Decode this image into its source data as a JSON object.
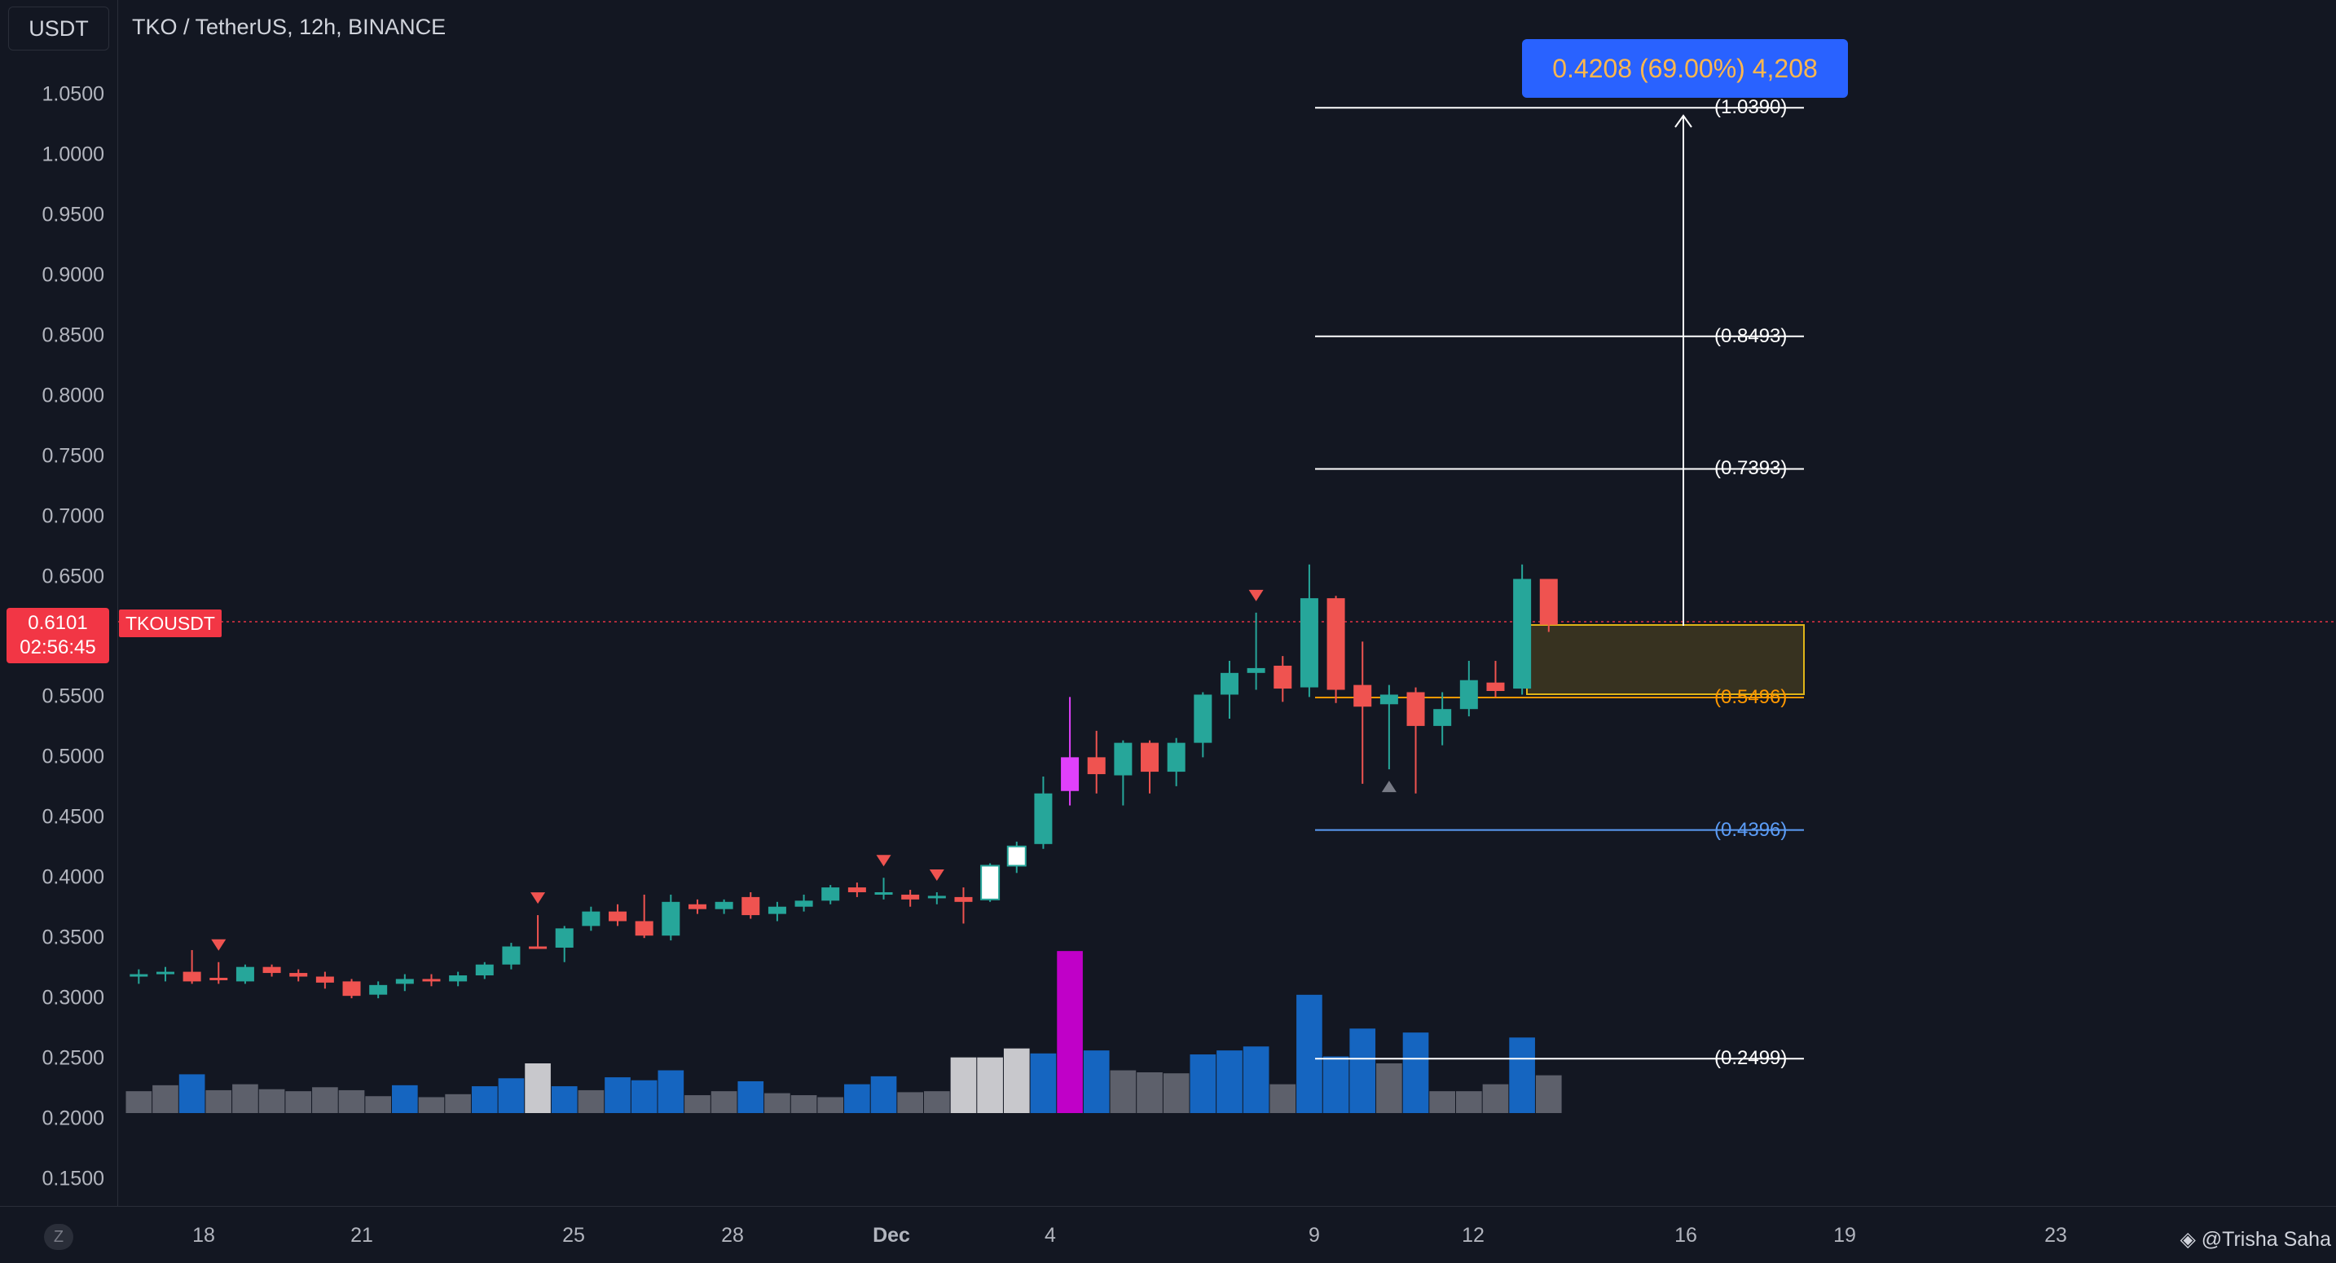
{
  "header": {
    "currency": "USDT",
    "title": "TKO / TetherUS, 12h, BINANCE"
  },
  "price_axis": {
    "labels": [
      "1.0500",
      "1.0000",
      "0.9500",
      "0.9000",
      "0.8500",
      "0.8000",
      "0.7500",
      "0.7000",
      "0.6500",
      "0.5500",
      "0.5000",
      "0.4500",
      "0.4000",
      "0.3500",
      "0.3000",
      "0.2500",
      "0.2000",
      "0.1500"
    ]
  },
  "current_price": {
    "value": "0.6101",
    "countdown": "02:56:45",
    "symbol": "TKOUSDT"
  },
  "date_axis": {
    "labels": [
      {
        "text": "18",
        "bold": false
      },
      {
        "text": "21",
        "bold": false
      },
      {
        "text": "25",
        "bold": false
      },
      {
        "text": "28",
        "bold": false
      },
      {
        "text": "Dec",
        "bold": true
      },
      {
        "text": "4",
        "bold": false
      },
      {
        "text": "9",
        "bold": false
      },
      {
        "text": "12",
        "bold": false
      },
      {
        "text": "16",
        "bold": false
      },
      {
        "text": "19",
        "bold": false
      },
      {
        "text": "23",
        "bold": false
      }
    ]
  },
  "measure": {
    "label": "0.4208 (69.00%) 4,208"
  },
  "fib_levels": [
    {
      "label": "(1.0390)",
      "price": 1.039,
      "color": "#ffffff"
    },
    {
      "label": "(0.8493)",
      "price": 0.8493,
      "color": "#ffffff"
    },
    {
      "label": "(0.7393)",
      "price": 0.7393,
      "color": "#ffffff"
    },
    {
      "label": "(0.5496)",
      "price": 0.5496,
      "color": "#ff9800"
    },
    {
      "label": "(0.4396)",
      "price": 0.4396,
      "color": "#5b9cf6"
    },
    {
      "label": "(0.2499)",
      "price": 0.2499,
      "color": "#ffffff"
    }
  ],
  "colors": {
    "up": "#26a69a",
    "down": "#ef5350",
    "highlight": "#e040fb",
    "volume_blue": "#1565c0",
    "volume_grey": "#5d606b",
    "volume_light": "#c8c8cc",
    "volume_magenta": "#c000c8"
  },
  "watermark": "@Trisha Saha",
  "z_button": "Z",
  "chart_data": {
    "type": "candlestick",
    "title": "TKO / TetherUS, 12h, BINANCE",
    "ylim": [
      0.12,
      1.08
    ],
    "candles": [
      {
        "o": 0.318,
        "h": 0.324,
        "l": 0.312,
        "c": 0.32,
        "color": "up"
      },
      {
        "o": 0.32,
        "h": 0.326,
        "l": 0.314,
        "c": 0.322,
        "color": "up"
      },
      {
        "o": 0.322,
        "h": 0.34,
        "l": 0.312,
        "c": 0.314,
        "color": "down"
      },
      {
        "o": 0.316,
        "h": 0.33,
        "l": 0.312,
        "c": 0.317,
        "color": "down"
      },
      {
        "o": 0.314,
        "h": 0.328,
        "l": 0.312,
        "c": 0.326,
        "color": "up"
      },
      {
        "o": 0.326,
        "h": 0.328,
        "l": 0.318,
        "c": 0.321,
        "color": "down"
      },
      {
        "o": 0.321,
        "h": 0.324,
        "l": 0.314,
        "c": 0.318,
        "color": "down"
      },
      {
        "o": 0.318,
        "h": 0.322,
        "l": 0.308,
        "c": 0.313,
        "color": "down"
      },
      {
        "o": 0.314,
        "h": 0.316,
        "l": 0.3,
        "c": 0.302,
        "color": "down"
      },
      {
        "o": 0.303,
        "h": 0.314,
        "l": 0.3,
        "c": 0.311,
        "color": "up"
      },
      {
        "o": 0.312,
        "h": 0.32,
        "l": 0.306,
        "c": 0.316,
        "color": "up"
      },
      {
        "o": 0.316,
        "h": 0.32,
        "l": 0.31,
        "c": 0.314,
        "color": "down"
      },
      {
        "o": 0.314,
        "h": 0.322,
        "l": 0.31,
        "c": 0.319,
        "color": "up"
      },
      {
        "o": 0.319,
        "h": 0.33,
        "l": 0.316,
        "c": 0.328,
        "color": "up"
      },
      {
        "o": 0.328,
        "h": 0.346,
        "l": 0.324,
        "c": 0.343,
        "color": "up"
      },
      {
        "o": 0.343,
        "h": 0.369,
        "l": 0.341,
        "c": 0.342,
        "color": "down"
      },
      {
        "o": 0.342,
        "h": 0.36,
        "l": 0.33,
        "c": 0.358,
        "color": "up"
      },
      {
        "o": 0.36,
        "h": 0.376,
        "l": 0.356,
        "c": 0.372,
        "color": "up"
      },
      {
        "o": 0.372,
        "h": 0.378,
        "l": 0.36,
        "c": 0.364,
        "color": "down"
      },
      {
        "o": 0.364,
        "h": 0.386,
        "l": 0.35,
        "c": 0.352,
        "color": "down"
      },
      {
        "o": 0.352,
        "h": 0.386,
        "l": 0.348,
        "c": 0.38,
        "color": "up"
      },
      {
        "o": 0.378,
        "h": 0.382,
        "l": 0.37,
        "c": 0.374,
        "color": "down"
      },
      {
        "o": 0.374,
        "h": 0.382,
        "l": 0.37,
        "c": 0.38,
        "color": "up"
      },
      {
        "o": 0.384,
        "h": 0.388,
        "l": 0.366,
        "c": 0.369,
        "color": "down"
      },
      {
        "o": 0.37,
        "h": 0.38,
        "l": 0.364,
        "c": 0.376,
        "color": "up"
      },
      {
        "o": 0.376,
        "h": 0.386,
        "l": 0.372,
        "c": 0.381,
        "color": "up"
      },
      {
        "o": 0.381,
        "h": 0.394,
        "l": 0.378,
        "c": 0.392,
        "color": "up"
      },
      {
        "o": 0.392,
        "h": 0.396,
        "l": 0.384,
        "c": 0.388,
        "color": "down"
      },
      {
        "o": 0.388,
        "h": 0.4,
        "l": 0.382,
        "c": 0.386,
        "color": "up"
      },
      {
        "o": 0.386,
        "h": 0.39,
        "l": 0.376,
        "c": 0.382,
        "color": "down"
      },
      {
        "o": 0.384,
        "h": 0.388,
        "l": 0.378,
        "c": 0.385,
        "color": "up"
      },
      {
        "o": 0.384,
        "h": 0.392,
        "l": 0.362,
        "c": 0.38,
        "color": "down"
      },
      {
        "o": 0.382,
        "h": 0.412,
        "l": 0.38,
        "c": 0.41,
        "color": "hollow"
      },
      {
        "o": 0.41,
        "h": 0.43,
        "l": 0.404,
        "c": 0.426,
        "color": "hollow"
      },
      {
        "o": 0.428,
        "h": 0.484,
        "l": 0.424,
        "c": 0.47,
        "color": "up"
      },
      {
        "o": 0.472,
        "h": 0.55,
        "l": 0.46,
        "c": 0.5,
        "color": "highlight"
      },
      {
        "o": 0.5,
        "h": 0.522,
        "l": 0.47,
        "c": 0.486,
        "color": "down"
      },
      {
        "o": 0.485,
        "h": 0.514,
        "l": 0.46,
        "c": 0.512,
        "color": "up"
      },
      {
        "o": 0.512,
        "h": 0.514,
        "l": 0.47,
        "c": 0.488,
        "color": "down"
      },
      {
        "o": 0.488,
        "h": 0.516,
        "l": 0.476,
        "c": 0.512,
        "color": "up"
      },
      {
        "o": 0.512,
        "h": 0.554,
        "l": 0.5,
        "c": 0.552,
        "color": "up"
      },
      {
        "o": 0.552,
        "h": 0.58,
        "l": 0.532,
        "c": 0.57,
        "color": "up"
      },
      {
        "o": 0.57,
        "h": 0.62,
        "l": 0.556,
        "c": 0.574,
        "color": "up"
      },
      {
        "o": 0.576,
        "h": 0.584,
        "l": 0.546,
        "c": 0.557,
        "color": "down"
      },
      {
        "o": 0.558,
        "h": 0.66,
        "l": 0.55,
        "c": 0.632,
        "color": "up"
      },
      {
        "o": 0.632,
        "h": 0.634,
        "l": 0.545,
        "c": 0.556,
        "color": "down"
      },
      {
        "o": 0.56,
        "h": 0.596,
        "l": 0.478,
        "c": 0.542,
        "color": "down"
      },
      {
        "o": 0.544,
        "h": 0.56,
        "l": 0.49,
        "c": 0.552,
        "color": "up"
      },
      {
        "o": 0.554,
        "h": 0.558,
        "l": 0.47,
        "c": 0.526,
        "color": "down"
      },
      {
        "o": 0.526,
        "h": 0.554,
        "l": 0.51,
        "c": 0.54,
        "color": "up"
      },
      {
        "o": 0.54,
        "h": 0.58,
        "l": 0.534,
        "c": 0.564,
        "color": "up"
      },
      {
        "o": 0.562,
        "h": 0.58,
        "l": 0.55,
        "c": 0.555,
        "color": "down"
      },
      {
        "o": 0.557,
        "h": 0.66,
        "l": 0.552,
        "c": 0.648,
        "color": "up"
      },
      {
        "o": 0.648,
        "h": 0.648,
        "l": 0.604,
        "c": 0.61,
        "color": "down"
      }
    ],
    "volumes": [
      {
        "v": 0.44,
        "c": "grey"
      },
      {
        "v": 0.56,
        "c": "grey"
      },
      {
        "v": 0.78,
        "c": "blue"
      },
      {
        "v": 0.46,
        "c": "grey"
      },
      {
        "v": 0.58,
        "c": "grey"
      },
      {
        "v": 0.48,
        "c": "grey"
      },
      {
        "v": 0.44,
        "c": "grey"
      },
      {
        "v": 0.52,
        "c": "grey"
      },
      {
        "v": 0.46,
        "c": "grey"
      },
      {
        "v": 0.34,
        "c": "grey"
      },
      {
        "v": 0.56,
        "c": "blue"
      },
      {
        "v": 0.32,
        "c": "grey"
      },
      {
        "v": 0.38,
        "c": "grey"
      },
      {
        "v": 0.54,
        "c": "blue"
      },
      {
        "v": 0.7,
        "c": "blue"
      },
      {
        "v": 1.0,
        "c": "light"
      },
      {
        "v": 0.54,
        "c": "blue"
      },
      {
        "v": 0.46,
        "c": "grey"
      },
      {
        "v": 0.72,
        "c": "blue"
      },
      {
        "v": 0.66,
        "c": "blue"
      },
      {
        "v": 0.86,
        "c": "blue"
      },
      {
        "v": 0.36,
        "c": "grey"
      },
      {
        "v": 0.44,
        "c": "grey"
      },
      {
        "v": 0.64,
        "c": "blue"
      },
      {
        "v": 0.4,
        "c": "grey"
      },
      {
        "v": 0.36,
        "c": "grey"
      },
      {
        "v": 0.32,
        "c": "grey"
      },
      {
        "v": 0.58,
        "c": "blue"
      },
      {
        "v": 0.74,
        "c": "blue"
      },
      {
        "v": 0.42,
        "c": "grey"
      },
      {
        "v": 0.44,
        "c": "grey"
      },
      {
        "v": 1.12,
        "c": "light"
      },
      {
        "v": 1.12,
        "c": "light"
      },
      {
        "v": 1.3,
        "c": "light"
      },
      {
        "v": 1.2,
        "c": "blue"
      },
      {
        "v": 3.26,
        "c": "magenta"
      },
      {
        "v": 1.26,
        "c": "blue"
      },
      {
        "v": 0.86,
        "c": "grey"
      },
      {
        "v": 0.82,
        "c": "grey"
      },
      {
        "v": 0.8,
        "c": "grey"
      },
      {
        "v": 1.18,
        "c": "blue"
      },
      {
        "v": 1.26,
        "c": "blue"
      },
      {
        "v": 1.34,
        "c": "blue"
      },
      {
        "v": 0.58,
        "c": "grey"
      },
      {
        "v": 2.38,
        "c": "blue"
      },
      {
        "v": 1.14,
        "c": "blue"
      },
      {
        "v": 1.7,
        "c": "blue"
      },
      {
        "v": 1.0,
        "c": "grey"
      },
      {
        "v": 1.62,
        "c": "blue"
      },
      {
        "v": 0.44,
        "c": "grey"
      },
      {
        "v": 0.44,
        "c": "grey"
      },
      {
        "v": 0.58,
        "c": "grey"
      },
      {
        "v": 1.52,
        "c": "blue"
      },
      {
        "v": 0.76,
        "c": "grey"
      }
    ],
    "signals": [
      {
        "index": 3,
        "type": "down"
      },
      {
        "index": 15,
        "type": "down"
      },
      {
        "index": 28,
        "type": "down"
      },
      {
        "index": 30,
        "type": "down"
      },
      {
        "index": 42,
        "type": "down"
      },
      {
        "index": 47,
        "type": "up"
      }
    ]
  }
}
